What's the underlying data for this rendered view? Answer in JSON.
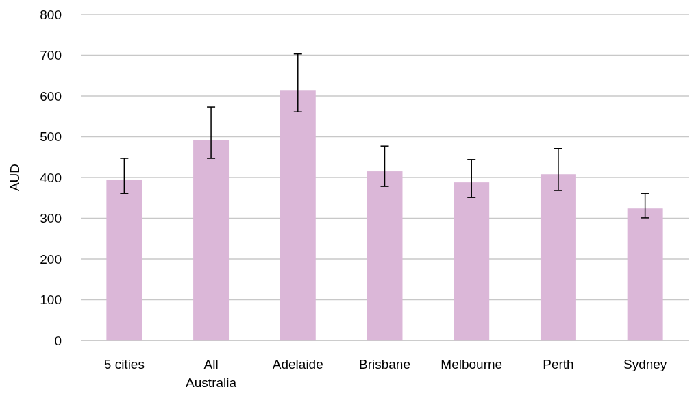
{
  "chart_data": {
    "type": "bar",
    "ylabel": "AUD",
    "categories": [
      "5 cities",
      "All Australia",
      "Adelaide",
      "Brisbane",
      "Melbourne",
      "Perth",
      "Sydney"
    ],
    "values": [
      395,
      491,
      613,
      415,
      388,
      408,
      324
    ],
    "errors": [
      [
        361,
        447
      ],
      [
        447,
        573
      ],
      [
        561,
        703
      ],
      [
        378,
        477
      ],
      [
        351,
        444
      ],
      [
        368,
        471
      ],
      [
        301,
        361
      ]
    ],
    "color": "#dbb7d8",
    "ylim": [
      0,
      800
    ],
    "yticks": [
      0,
      100,
      200,
      300,
      400,
      500,
      600,
      700,
      800
    ],
    "grid": "y"
  }
}
